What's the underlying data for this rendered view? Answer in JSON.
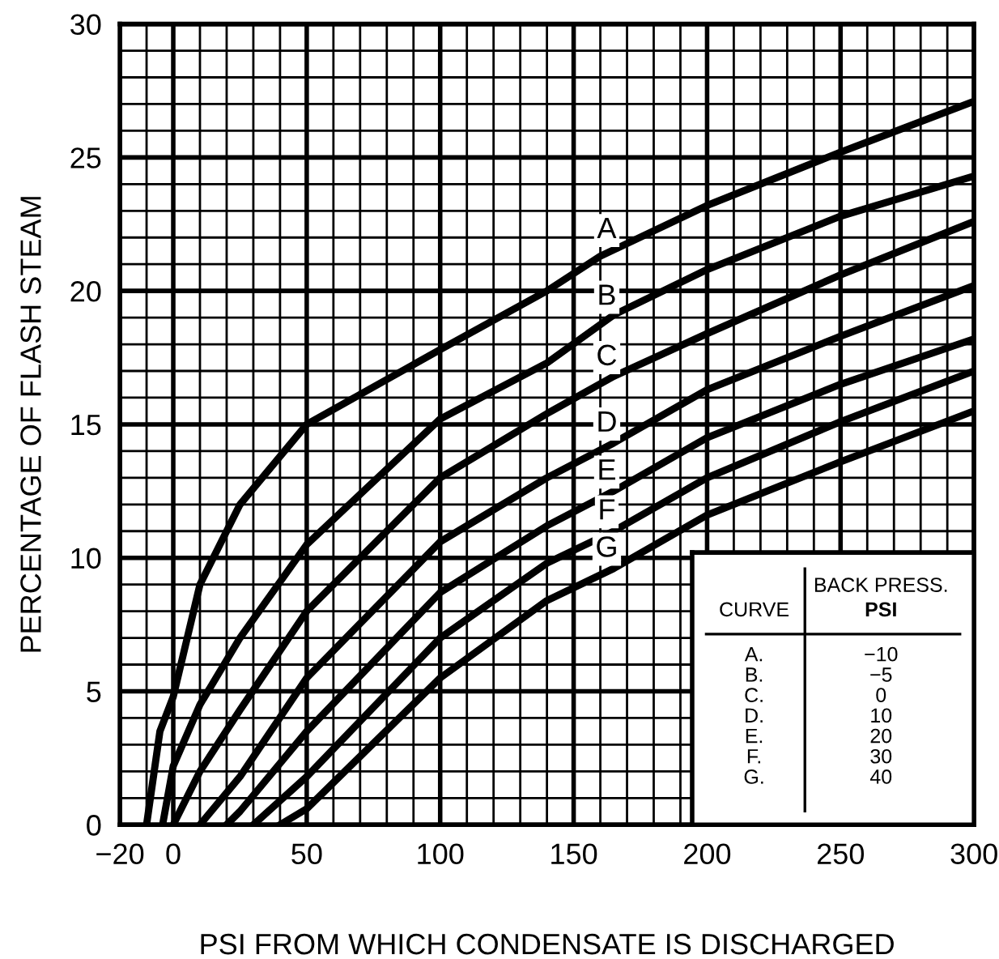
{
  "chart_data": {
    "type": "line",
    "xlabel": "PSI FROM WHICH CONDENSATE IS DISCHARGED",
    "ylabel": "PERCENTAGE OF FLASH STEAM",
    "xlim": [
      -20,
      300
    ],
    "ylim": [
      0,
      30
    ],
    "xticks": [
      -20,
      0,
      50,
      100,
      150,
      200,
      250,
      300
    ],
    "yticks": [
      0,
      5,
      10,
      15,
      20,
      25,
      30
    ],
    "grid": true,
    "marker": "none",
    "line_style": "solid",
    "series": [
      {
        "name": "A",
        "color": "#000000",
        "x": [
          -10,
          -5,
          0,
          10,
          25,
          50,
          100,
          140,
          160,
          200,
          250,
          300
        ],
        "values": [
          0,
          3.5,
          4.8,
          9.0,
          12.0,
          15.0,
          17.8,
          20.0,
          21.3,
          23.2,
          25.2,
          27.1
        ]
      },
      {
        "name": "B",
        "color": "#000000",
        "x": [
          -4,
          0,
          10,
          25,
          50,
          100,
          140,
          165,
          200,
          250,
          300
        ],
        "values": [
          0,
          2.2,
          4.5,
          7.0,
          10.5,
          15.2,
          17.3,
          19.1,
          20.8,
          22.8,
          24.3
        ]
      },
      {
        "name": "C",
        "color": "#000000",
        "x": [
          0,
          10,
          25,
          50,
          100,
          140,
          165,
          200,
          250,
          300
        ],
        "values": [
          0,
          2.0,
          4.3,
          8.0,
          13.0,
          15.4,
          16.8,
          18.4,
          20.6,
          22.6
        ]
      },
      {
        "name": "D",
        "color": "#000000",
        "x": [
          10,
          25,
          50,
          100,
          140,
          165,
          200,
          250,
          300
        ],
        "values": [
          0,
          1.8,
          5.5,
          10.6,
          13.0,
          14.3,
          16.3,
          18.3,
          20.2
        ]
      },
      {
        "name": "E",
        "color": "#000000",
        "x": [
          20,
          25,
          50,
          100,
          140,
          165,
          200,
          250,
          300
        ],
        "values": [
          0,
          0.5,
          3.5,
          8.7,
          11.2,
          12.5,
          14.5,
          16.5,
          18.2
        ]
      },
      {
        "name": "F",
        "color": "#000000",
        "x": [
          30,
          50,
          100,
          140,
          165,
          200,
          250,
          300
        ],
        "values": [
          0,
          1.8,
          7.0,
          9.8,
          11.0,
          13.0,
          15.1,
          17.0
        ]
      },
      {
        "name": "G",
        "color": "#000000",
        "x": [
          40,
          50,
          100,
          140,
          165,
          200,
          250,
          300
        ],
        "values": [
          0,
          0.6,
          5.5,
          8.4,
          9.6,
          11.6,
          13.6,
          15.5
        ]
      }
    ],
    "annotations": [
      "CURVE",
      "BACK PRESS.",
      "PSI",
      "A.",
      "−10",
      "B.",
      "−5",
      "C.",
      "0",
      "D.",
      "10",
      "E.",
      "20",
      "F.",
      "30",
      "G.",
      "40"
    ]
  }
}
